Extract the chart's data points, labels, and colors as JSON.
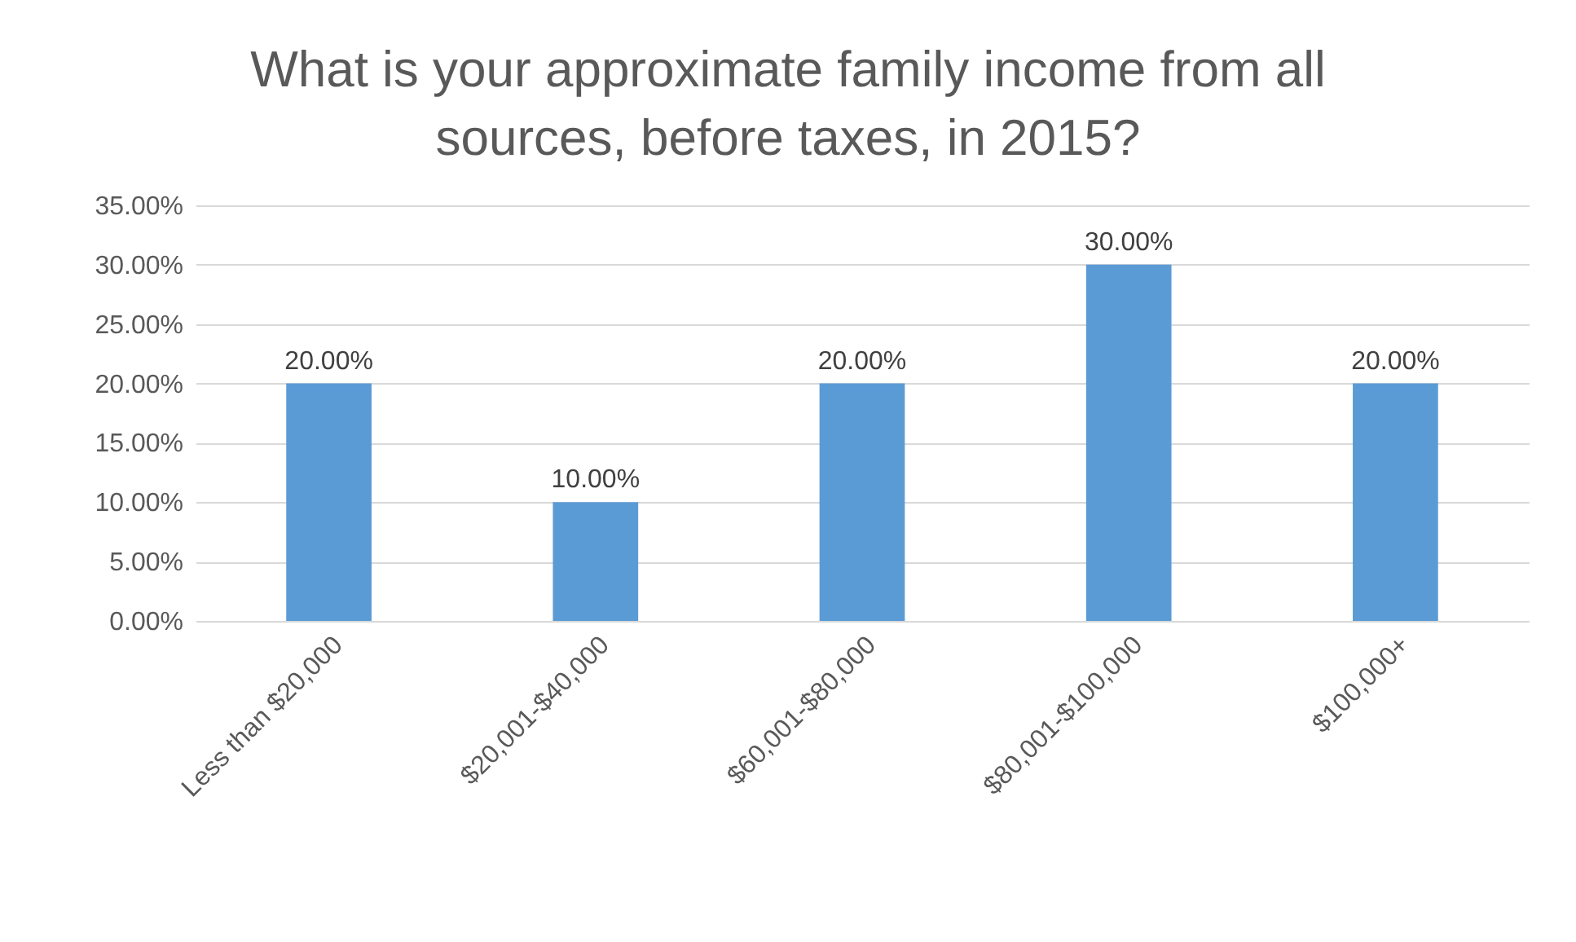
{
  "chart_data": {
    "type": "bar",
    "title": "What is your approximate family income from all sources, before taxes, in 2015?",
    "categories": [
      "Less than $20,000",
      "$20,001-$40,000",
      "$60,001-$80,000",
      "$80,001-$100,000",
      "$100,000+"
    ],
    "values": [
      20,
      10,
      20,
      30,
      20
    ],
    "value_labels": [
      "20.00%",
      "10.00%",
      "20.00%",
      "30.00%",
      "20.00%"
    ],
    "color": "#5b9bd5",
    "ylim": [
      0,
      35
    ],
    "yticks": [
      {
        "value": 0,
        "label": "0.00%"
      },
      {
        "value": 5,
        "label": "5.00%"
      },
      {
        "value": 10,
        "label": "10.00%"
      },
      {
        "value": 15,
        "label": "15.00%"
      },
      {
        "value": 20,
        "label": "20.00%"
      },
      {
        "value": 25,
        "label": "25.00%"
      },
      {
        "value": 30,
        "label": "30.00%"
      },
      {
        "value": 35,
        "label": "35.00%"
      }
    ],
    "grid": "y"
  }
}
